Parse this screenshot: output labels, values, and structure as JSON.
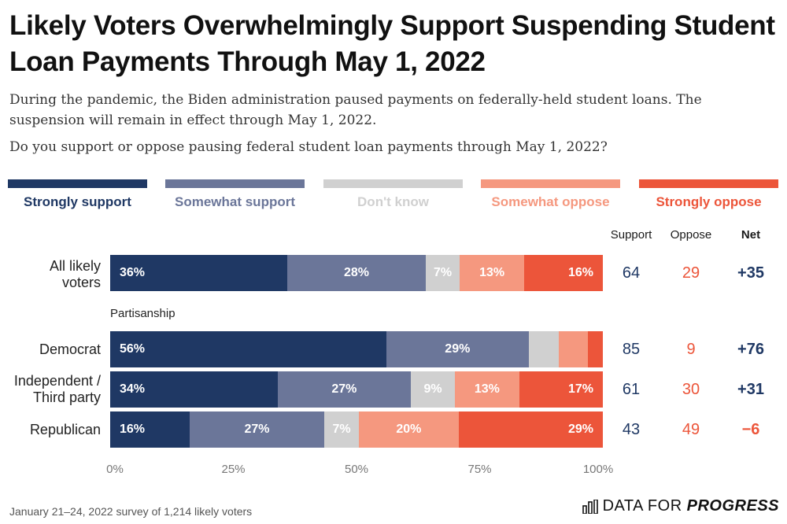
{
  "title": "Likely Voters Overwhelmingly Support Suspending Student Loan Payments Through May 1, 2022",
  "subtitle": "During the pandemic, the Biden administration paused payments on federally-held student loans. The suspension will remain in effect through May 1, 2022.",
  "question": "Do you support or oppose pausing federal student loan payments through May 1, 2022?",
  "colors": {
    "strongly_support": "#1f3864",
    "somewhat_support": "#6b7699",
    "dont_know": "#d0d0d0",
    "somewhat_oppose": "#f5987f",
    "strongly_oppose": "#ec553a",
    "support_text": "#1f3864",
    "oppose_text": "#ec553a"
  },
  "column_headers": {
    "support": "Support",
    "oppose": "Oppose",
    "net": "Net"
  },
  "section_label": "Partisanship",
  "footer": "January 21–24, 2022 survey of 1,214 likely voters",
  "brand": {
    "prefix": "DATA FOR",
    "suffix": "PROGRESS"
  },
  "chart_data": {
    "type": "bar",
    "orientation": "horizontal",
    "stacked": true,
    "categories": [
      "All likely voters",
      "Democrat",
      "Independent / Third party",
      "Republican"
    ],
    "series": [
      {
        "name": "Strongly support",
        "values": [
          36,
          56,
          34,
          16
        ],
        "labels": [
          "36%",
          "56%",
          "34%",
          "16%"
        ]
      },
      {
        "name": "Somewhat support",
        "values": [
          28,
          29,
          27,
          27
        ],
        "labels": [
          "28%",
          "29%",
          "27%",
          "27%"
        ]
      },
      {
        "name": "Don't know",
        "values": [
          7,
          6,
          9,
          7
        ],
        "labels": [
          "7%",
          "",
          "9%",
          "7%"
        ]
      },
      {
        "name": "Somewhat oppose",
        "values": [
          13,
          6,
          13,
          20
        ],
        "labels": [
          "13%",
          "",
          "13%",
          "20%"
        ]
      },
      {
        "name": "Strongly oppose",
        "values": [
          16,
          3,
          17,
          29
        ],
        "labels": [
          "16%",
          "",
          "17%",
          "29%"
        ]
      }
    ],
    "support": [
      "64",
      "85",
      "61",
      "43"
    ],
    "oppose": [
      "29",
      "9",
      "30",
      "49"
    ],
    "net": [
      "+35",
      "+76",
      "+31",
      "−6"
    ],
    "xlim": [
      0,
      100
    ],
    "xticks": [
      "0%",
      "25%",
      "50%",
      "75%",
      "100%"
    ],
    "legend_position": "top",
    "grid": false
  }
}
